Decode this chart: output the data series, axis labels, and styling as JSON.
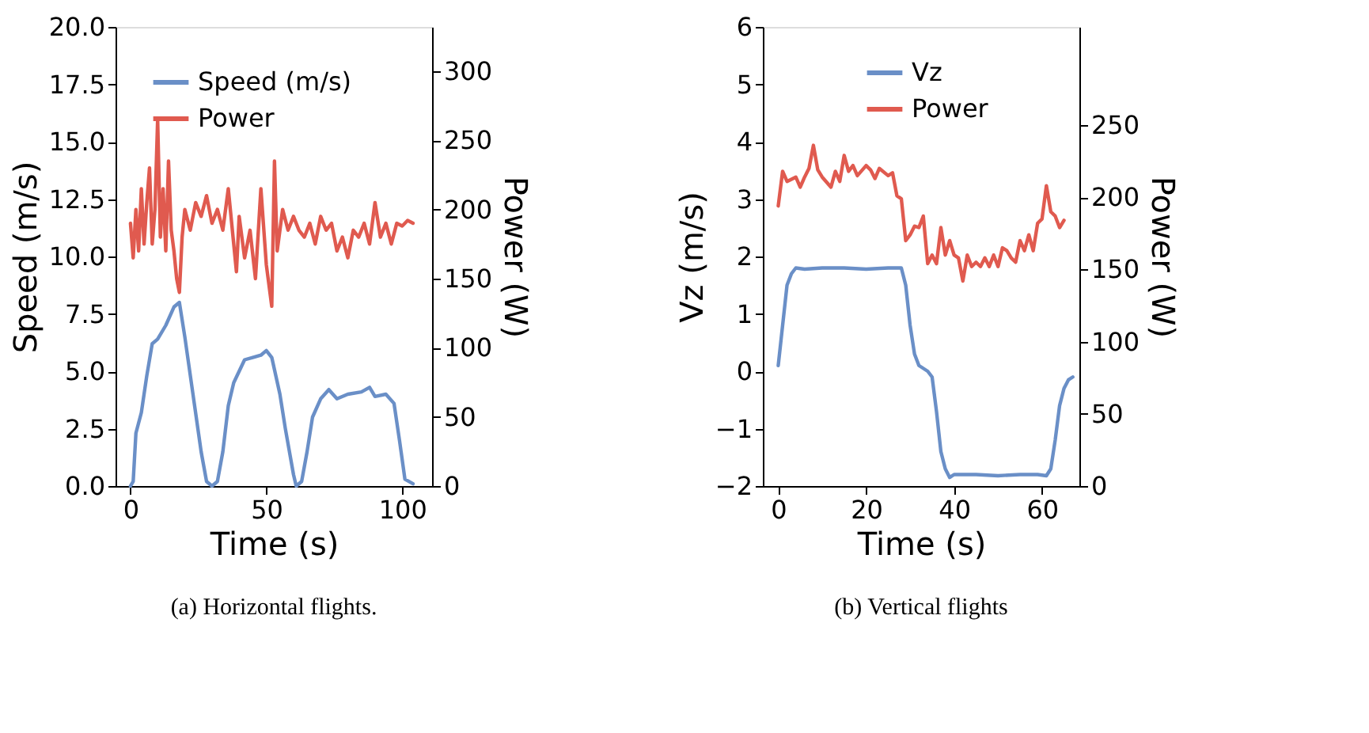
{
  "chart_data": [
    {
      "type": "line",
      "title": "(a) Horizontal flights.",
      "xlabel": "Time (s)",
      "ylabel": "Speed (m/s)",
      "y2label": "Power (W)",
      "xlim": [
        -5.5,
        111
      ],
      "xticks": [
        0,
        50,
        100
      ],
      "ylim": [
        0,
        20
      ],
      "yticks": [
        {
          "value": 0,
          "label": "0.0"
        },
        {
          "value": 2.5,
          "label": "2.5"
        },
        {
          "value": 5,
          "label": "5.0"
        },
        {
          "value": 7.5,
          "label": "7.5"
        },
        {
          "value": 10,
          "label": "10.0"
        },
        {
          "value": 12.5,
          "label": "12.5"
        },
        {
          "value": 15,
          "label": "15.0"
        },
        {
          "value": 17.5,
          "label": "17.5"
        },
        {
          "value": 20,
          "label": "20.0"
        }
      ],
      "y2lim": [
        0,
        332
      ],
      "y2ticks": [
        0,
        50,
        100,
        150,
        200,
        250,
        300
      ],
      "legend": "top left",
      "grid": false,
      "series": [
        {
          "name": "Speed (m/s)",
          "color": "#6a8fc7",
          "x": [
            0,
            1,
            2,
            4,
            6,
            8,
            10,
            13,
            16,
            18,
            20,
            23,
            26,
            28,
            30,
            32,
            34,
            36,
            38,
            40,
            42,
            45,
            48,
            50,
            52,
            55,
            57,
            60,
            61,
            63,
            65,
            67,
            70,
            73,
            76,
            80,
            85,
            88,
            90,
            94,
            97,
            99,
            101,
            104
          ],
          "values": [
            0,
            0.2,
            2.3,
            3.2,
            4.8,
            6.2,
            6.4,
            7.0,
            7.8,
            8.0,
            6.5,
            4.0,
            1.5,
            0.2,
            0.0,
            0.2,
            1.5,
            3.5,
            4.5,
            5.0,
            5.5,
            5.6,
            5.7,
            5.9,
            5.6,
            4.0,
            2.5,
            0.5,
            0.0,
            0.2,
            1.5,
            3.0,
            3.8,
            4.2,
            3.8,
            4.0,
            4.1,
            4.3,
            3.9,
            4.0,
            3.6,
            2.0,
            0.3,
            0.1
          ]
        },
        {
          "name": "Power",
          "color": "#e05a4f",
          "axis": "y2",
          "x": [
            0,
            1,
            2,
            3,
            4,
            5,
            6,
            7,
            8,
            9,
            10,
            11,
            12,
            13,
            14,
            15,
            16,
            17,
            18,
            19,
            20,
            22,
            24,
            26,
            28,
            30,
            32,
            34,
            36,
            38,
            39,
            40,
            42,
            44,
            46,
            48,
            50,
            52,
            53,
            54,
            56,
            58,
            60,
            62,
            64,
            66,
            68,
            70,
            72,
            74,
            76,
            78,
            80,
            82,
            84,
            86,
            88,
            90,
            92,
            94,
            96,
            98,
            100,
            102,
            104
          ],
          "values": [
            190,
            165,
            200,
            170,
            215,
            175,
            205,
            230,
            175,
            200,
            265,
            180,
            215,
            170,
            235,
            185,
            170,
            150,
            140,
            180,
            200,
            185,
            205,
            195,
            210,
            190,
            200,
            185,
            215,
            175,
            155,
            195,
            165,
            185,
            150,
            215,
            160,
            130,
            235,
            170,
            200,
            185,
            195,
            185,
            180,
            190,
            175,
            195,
            185,
            190,
            170,
            180,
            165,
            185,
            180,
            190,
            175,
            205,
            180,
            190,
            175,
            190,
            188,
            192,
            190
          ]
        }
      ]
    },
    {
      "type": "line",
      "title": "(b) Vertical flights",
      "xlabel": "Time (s)",
      "ylabel": "Vz (m/s)",
      "y2label": "Power (W)",
      "xlim": [
        -3.5,
        68.5
      ],
      "xticks": [
        0,
        20,
        40,
        60
      ],
      "ylim": [
        -2,
        6
      ],
      "yticks": [
        {
          "value": -2,
          "label": "−2"
        },
        {
          "value": -1,
          "label": "−1"
        },
        0,
        1,
        2,
        3,
        4,
        5,
        6
      ],
      "y2lim": [
        0,
        318
      ],
      "y2ticks": [
        0,
        50,
        100,
        150,
        200,
        250
      ],
      "legend": "top",
      "grid": false,
      "series": [
        {
          "name": "Vz",
          "color": "#6a8fc7",
          "x": [
            0,
            1,
            2,
            3,
            4,
            6,
            10,
            15,
            20,
            25,
            28,
            29,
            30,
            31,
            32,
            34,
            35,
            36,
            37,
            38,
            39,
            40,
            45,
            50,
            55,
            59,
            61,
            62,
            63,
            64,
            65,
            66,
            67
          ],
          "values": [
            0.1,
            0.8,
            1.5,
            1.7,
            1.8,
            1.78,
            1.8,
            1.8,
            1.78,
            1.8,
            1.8,
            1.5,
            0.8,
            0.3,
            0.1,
            0.0,
            -0.1,
            -0.7,
            -1.4,
            -1.7,
            -1.85,
            -1.8,
            -1.8,
            -1.82,
            -1.8,
            -1.8,
            -1.82,
            -1.7,
            -1.2,
            -0.6,
            -0.3,
            -0.15,
            -0.1
          ]
        },
        {
          "name": "Power",
          "color": "#e05a4f",
          "axis": "y2",
          "x": [
            0,
            1,
            2,
            4,
            5,
            6,
            7,
            8,
            9,
            10,
            12,
            13,
            14,
            15,
            16,
            17,
            18,
            20,
            21,
            22,
            23,
            25,
            26,
            27,
            28,
            29,
            30,
            31,
            32,
            33,
            34,
            35,
            36,
            37,
            38,
            39,
            40,
            41,
            42,
            43,
            44,
            45,
            46,
            47,
            48,
            49,
            50,
            51,
            52,
            53,
            54,
            55,
            56,
            57,
            58,
            59,
            60,
            61,
            62,
            63,
            64,
            65
          ],
          "values": [
            194,
            218,
            211,
            214,
            207,
            214,
            220,
            236,
            219,
            214,
            207,
            218,
            211,
            229,
            218,
            222,
            215,
            222,
            219,
            213,
            220,
            215,
            217,
            201,
            199,
            170,
            174,
            180,
            179,
            187,
            154,
            160,
            154,
            179,
            160,
            170,
            160,
            158,
            142,
            160,
            152,
            155,
            152,
            158,
            152,
            160,
            152,
            165,
            163,
            158,
            155,
            170,
            163,
            174,
            163,
            182,
            185,
            208,
            190,
            187,
            179,
            184
          ]
        }
      ]
    }
  ]
}
